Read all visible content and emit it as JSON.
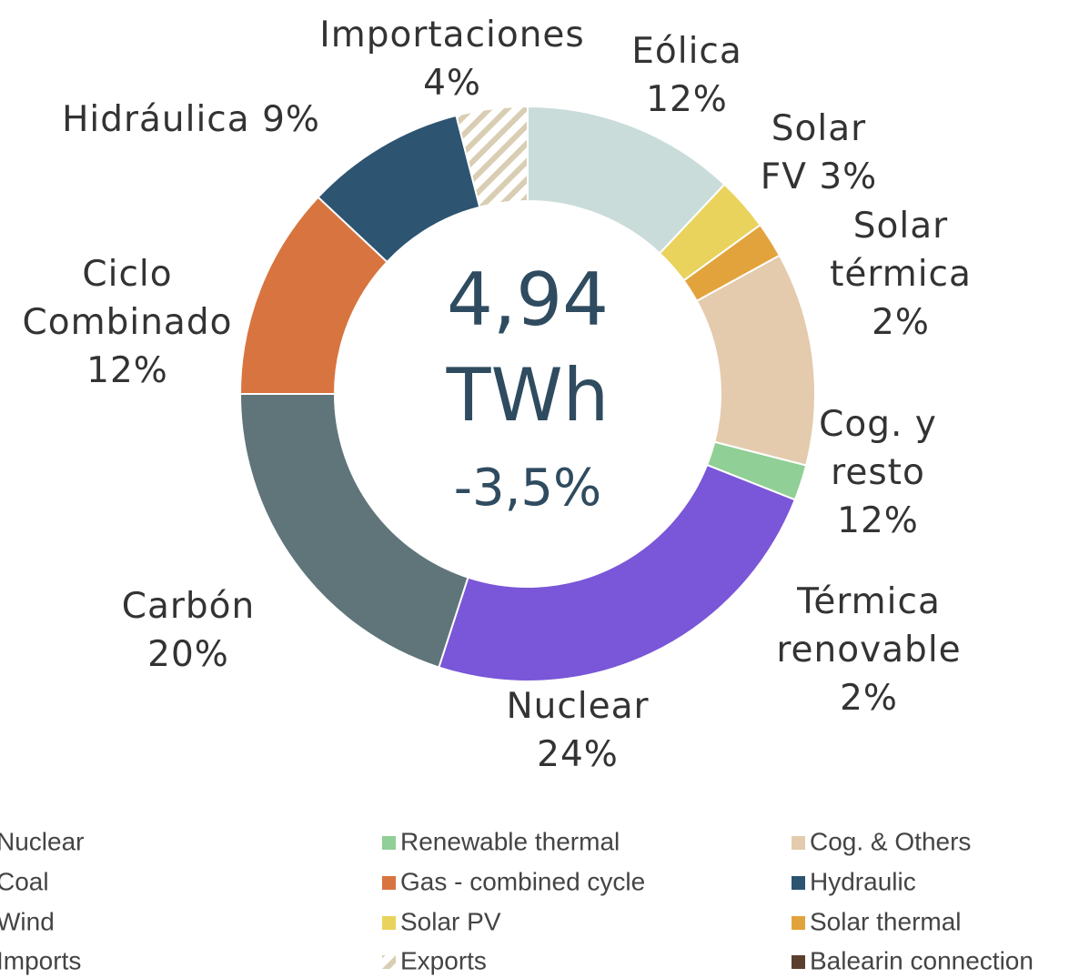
{
  "chart_data": {
    "type": "donut",
    "categories": [
      "Eólica",
      "Solar FV",
      "Solar térmica",
      "Cog. y resto",
      "Térmica renovable",
      "Nuclear",
      "Carbón",
      "Ciclo Combinado",
      "Hidráulica",
      "Importaciones"
    ],
    "values": [
      12,
      3,
      2,
      12,
      2,
      24,
      20,
      12,
      9,
      4
    ],
    "value_labels": [
      "12%",
      "3%",
      "2%",
      "12%",
      "2%",
      "24%",
      "20%",
      "12%",
      "9%",
      "4%"
    ],
    "colors": [
      "#c9dcd9",
      "#e9d35c",
      "#e2a33c",
      "#e4cbad",
      "#90cf95",
      "#7a56d8",
      "#5f7579",
      "#d8743f",
      "#2d5471",
      "#d9ceb3"
    ],
    "patterns": [
      null,
      null,
      null,
      null,
      null,
      null,
      null,
      null,
      null,
      "hatch"
    ],
    "center_text": [
      "4,94",
      "TWh",
      "-3,5%"
    ],
    "legend": [
      {
        "name": "Nuclear",
        "color": "#7a56d8"
      },
      {
        "name": "Coal",
        "color": "#5f7579"
      },
      {
        "name": "Wind",
        "color": "#c9dcd9"
      },
      {
        "name": "Imports",
        "color": "#d9ceb3",
        "pattern": "hatch"
      },
      {
        "name": "Renewable thermal",
        "color": "#90cf95"
      },
      {
        "name": "Gas - combined cycle",
        "color": "#d8743f"
      },
      {
        "name": "Solar PV",
        "color": "#e9d35c"
      },
      {
        "name": "Exports",
        "color": "#8a7a55",
        "pattern": "hatch"
      },
      {
        "name": "Cog. & Others",
        "color": "#e4cbad"
      },
      {
        "name": "Hydraulic",
        "color": "#2d5471"
      },
      {
        "name": "Solar thermal",
        "color": "#e2a33c"
      },
      {
        "name": "Balearin connection",
        "color": "#5a3f2f"
      }
    ]
  }
}
